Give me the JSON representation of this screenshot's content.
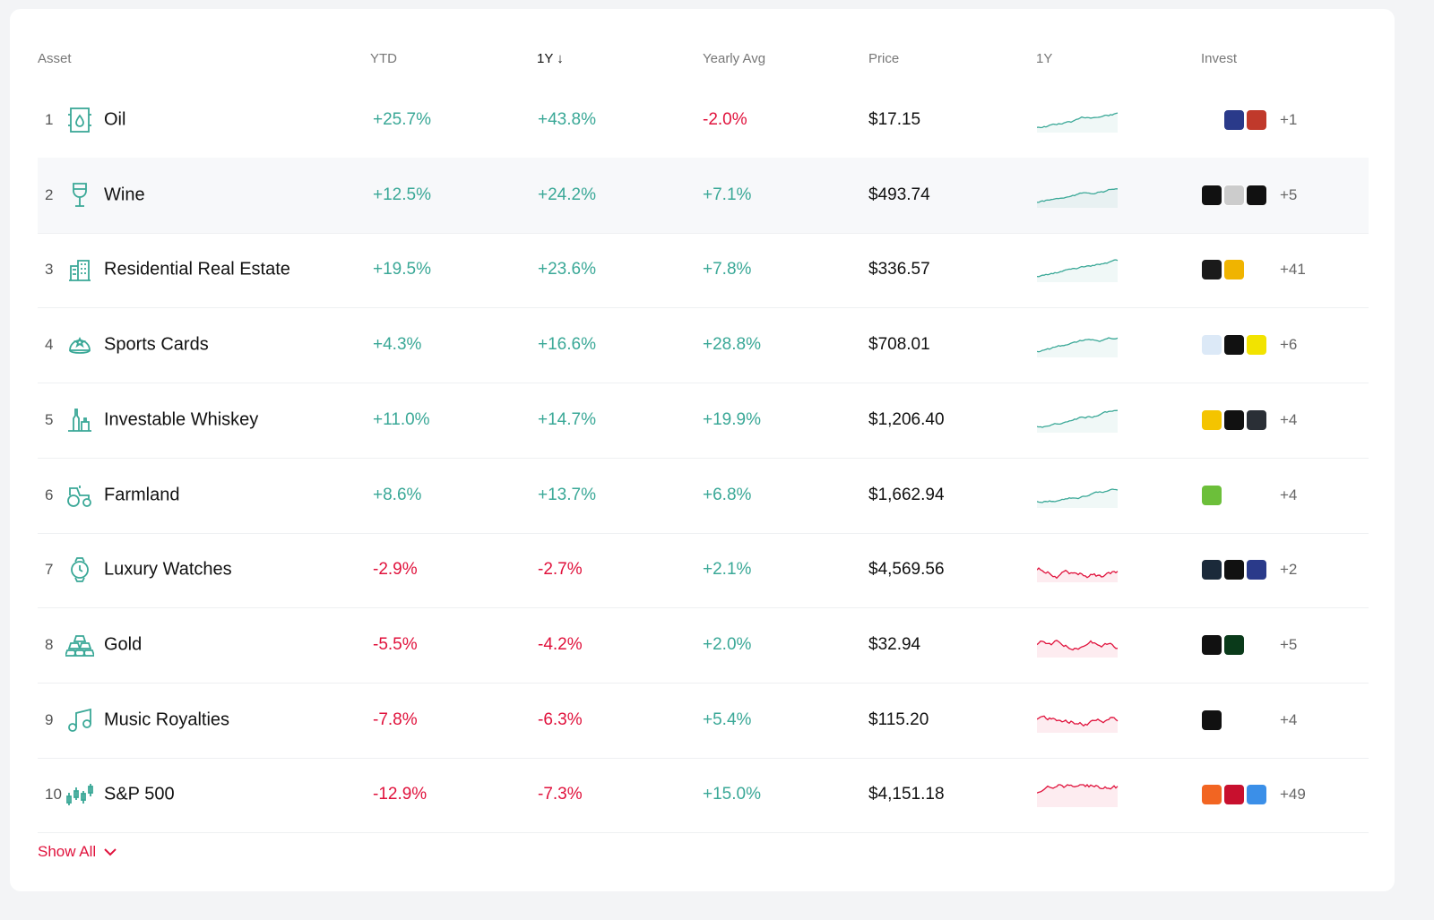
{
  "header": {
    "asset": "Asset",
    "ytd": "YTD",
    "one_y": "1Y ↓",
    "yearly_avg": "Yearly Avg",
    "price": "Price",
    "chart": "1Y",
    "invest": "Invest"
  },
  "colors": {
    "positive": "#3aa897",
    "negative": "#e0123c"
  },
  "rows": [
    {
      "rank": "1",
      "name": "Oil",
      "icon": "oil-barrel-icon",
      "ytd": "+25.7%",
      "one_y": "+43.8%",
      "yearly_avg": "-2.0%",
      "price": "$17.15",
      "trend": "up",
      "logos": [
        "#ffffff",
        "#2a3a8a",
        "#c0392b"
      ],
      "more": "+1"
    },
    {
      "rank": "2",
      "name": "Wine",
      "icon": "wine-glass-icon",
      "ytd": "+12.5%",
      "one_y": "+24.2%",
      "yearly_avg": "+7.1%",
      "price": "$493.74",
      "trend": "up",
      "logos": [
        "#111111",
        "#cccccc",
        "#111111"
      ],
      "more": "+5"
    },
    {
      "rank": "3",
      "name": "Residential Real Estate",
      "icon": "building-icon",
      "ytd": "+19.5%",
      "one_y": "+23.6%",
      "yearly_avg": "+7.8%",
      "price": "$336.57",
      "trend": "up",
      "logos": [
        "#1a1a1a",
        "#f0b400",
        "#ffffff"
      ],
      "more": "+41"
    },
    {
      "rank": "4",
      "name": "Sports Cards",
      "icon": "cap-icon",
      "ytd": "+4.3%",
      "one_y": "+16.6%",
      "yearly_avg": "+28.8%",
      "price": "$708.01",
      "trend": "up",
      "logos": [
        "#dce9f7",
        "#111111",
        "#f2e300"
      ],
      "more": "+6"
    },
    {
      "rank": "5",
      "name": "Investable Whiskey",
      "icon": "bottles-icon",
      "ytd": "+11.0%",
      "one_y": "+14.7%",
      "yearly_avg": "+19.9%",
      "price": "$1,206.40",
      "trend": "up",
      "logos": [
        "#f4c400",
        "#111111",
        "#2a2f36"
      ],
      "more": "+4"
    },
    {
      "rank": "6",
      "name": "Farmland",
      "icon": "tractor-icon",
      "ytd": "+8.6%",
      "one_y": "+13.7%",
      "yearly_avg": "+6.8%",
      "price": "$1,662.94",
      "trend": "up",
      "logos": [
        "#6cbf3a",
        "#ffffff",
        "#ffffff"
      ],
      "more": "+4"
    },
    {
      "rank": "7",
      "name": "Luxury Watches",
      "icon": "watch-icon",
      "ytd": "-2.9%",
      "one_y": "-2.7%",
      "yearly_avg": "+2.1%",
      "price": "$4,569.56",
      "trend": "down",
      "logos": [
        "#1b2a3a",
        "#111111",
        "#2a3a8a"
      ],
      "more": "+2"
    },
    {
      "rank": "8",
      "name": "Gold",
      "icon": "gold-bars-icon",
      "ytd": "-5.5%",
      "one_y": "-4.2%",
      "yearly_avg": "+2.0%",
      "price": "$32.94",
      "trend": "down",
      "logos": [
        "#111111",
        "#0a3a1a",
        "#ffffff"
      ],
      "more": "+5"
    },
    {
      "rank": "9",
      "name": "Music Royalties",
      "icon": "music-note-icon",
      "ytd": "-7.8%",
      "one_y": "-6.3%",
      "yearly_avg": "+5.4%",
      "price": "$115.20",
      "trend": "down",
      "logos": [
        "#111111",
        "#ffffff",
        "#ffffff"
      ],
      "more": "+4"
    },
    {
      "rank": "10",
      "name": "S&P 500",
      "icon": "candlestick-icon",
      "ytd": "-12.9%",
      "one_y": "-7.3%",
      "yearly_avg": "+15.0%",
      "price": "$4,151.18",
      "trend": "down",
      "logos": [
        "#f26522",
        "#c8102e",
        "#3b8fe8"
      ],
      "more": "+49"
    }
  ],
  "show_all": "Show All"
}
